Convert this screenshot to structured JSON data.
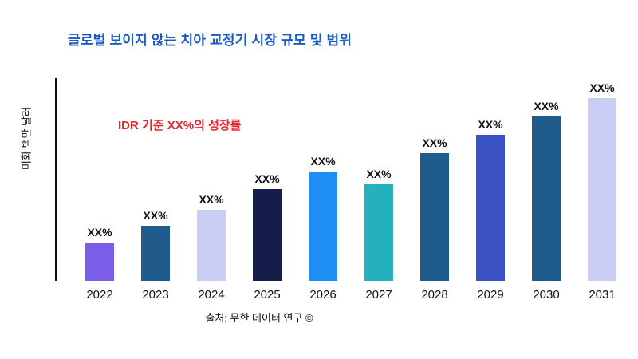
{
  "header": {
    "title": "글로벌 보이지 않는 치아 교정기 시장 규모 및 범위",
    "title_color": "#1a5bc4"
  },
  "annotation": {
    "text": "IDR 기준 XX%의 성장률",
    "color": "#e8232b"
  },
  "chart_data": {
    "type": "bar",
    "title": "글로벌 보이지 않는 치아 교정기 시장 규모 및 범위",
    "xlabel": "",
    "ylabel": "미화 백만 달러",
    "categories": [
      "2022",
      "2023",
      "2024",
      "2025",
      "2026",
      "2027",
      "2028",
      "2029",
      "2030",
      "2031"
    ],
    "values": [
      21,
      30,
      39,
      50,
      60,
      53,
      70,
      80,
      90,
      100
    ],
    "bar_labels": [
      "XX%",
      "XX%",
      "XX%",
      "XX%",
      "XX%",
      "XX%",
      "XX%",
      "XX%",
      "XX%",
      "XX%"
    ],
    "bar_colors": [
      "#7a5ee8",
      "#1f5c8c",
      "#c9cdf3",
      "#151d4a",
      "#1d8ff2",
      "#25b0bd",
      "#1f5c8c",
      "#3a52c4",
      "#1f5c8c",
      "#c9cdf3"
    ],
    "ylim": [
      0,
      110
    ],
    "grid": false,
    "legend": false,
    "annotation": "IDR 기준 XX%의 성장률"
  },
  "footer": {
    "source": "출처: 무한 데이터 연구 ©"
  }
}
